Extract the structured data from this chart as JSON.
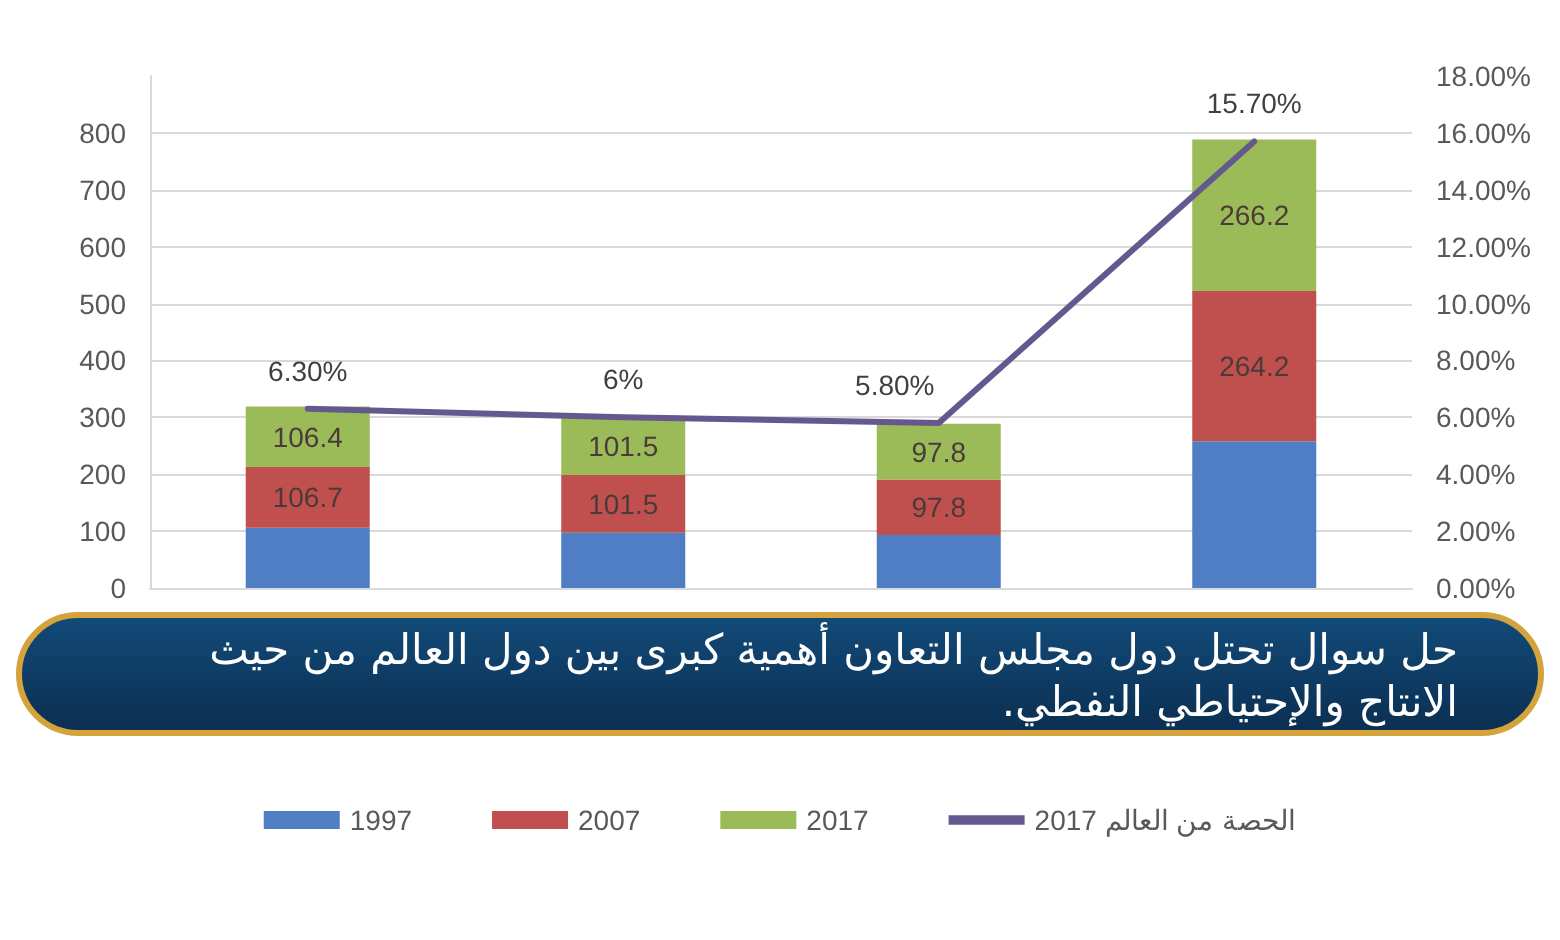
{
  "chart_data": {
    "type": "bar",
    "title": "حل سوال تحتل دول مجلس التعاون أهمية كبرى بين دول العالم من حيث الانتاج والإحتياطي النفطي.",
    "categories": [
      null,
      null,
      null,
      null
    ],
    "stacked": true,
    "series": [
      {
        "name": "1997",
        "color": "#4f7ec4",
        "values": [
          106,
          97,
          93,
          258
        ]
      },
      {
        "name": "2007",
        "color": "#c0504d",
        "values": [
          106.7,
          101.5,
          97.8,
          264.2
        ],
        "value_labels": [
          "106.7",
          "101.5",
          "97.8",
          "264.2"
        ]
      },
      {
        "name": "2017",
        "color": "#9bbb59",
        "values": [
          106.4,
          101.5,
          97.8,
          266.2
        ],
        "value_labels": [
          "106.4",
          "101.5",
          "97.8",
          "266.2"
        ]
      },
      {
        "name": "الحصة من العالم 2017",
        "type": "line",
        "axis": "y2",
        "color": "#65588f",
        "values": [
          6.3,
          6,
          5.8,
          15.7
        ],
        "value_labels": [
          "6.30%",
          "6%",
          "5.80%",
          "15.70%"
        ]
      }
    ],
    "ylim": [
      0,
      900
    ],
    "yticks": [
      0,
      100,
      200,
      300,
      400,
      500,
      600,
      700,
      800
    ],
    "y2lim": [
      0,
      18
    ],
    "y2ticks": [
      {
        "value": 0,
        "label": "0.00%"
      },
      {
        "value": 2,
        "label": "2.00%"
      },
      {
        "value": 4,
        "label": "4.00%"
      },
      {
        "value": 6,
        "label": "6.00%"
      },
      {
        "value": 8,
        "label": "8.00%"
      },
      {
        "value": 10,
        "label": "10.00%"
      },
      {
        "value": 12,
        "label": "12.00%"
      },
      {
        "value": 14,
        "label": "14.00%"
      },
      {
        "value": 16,
        "label": "16.00%"
      },
      {
        "value": 18,
        "label": "18.00%"
      }
    ],
    "grid": "y",
    "legend": "bottom",
    "marker": "none"
  }
}
